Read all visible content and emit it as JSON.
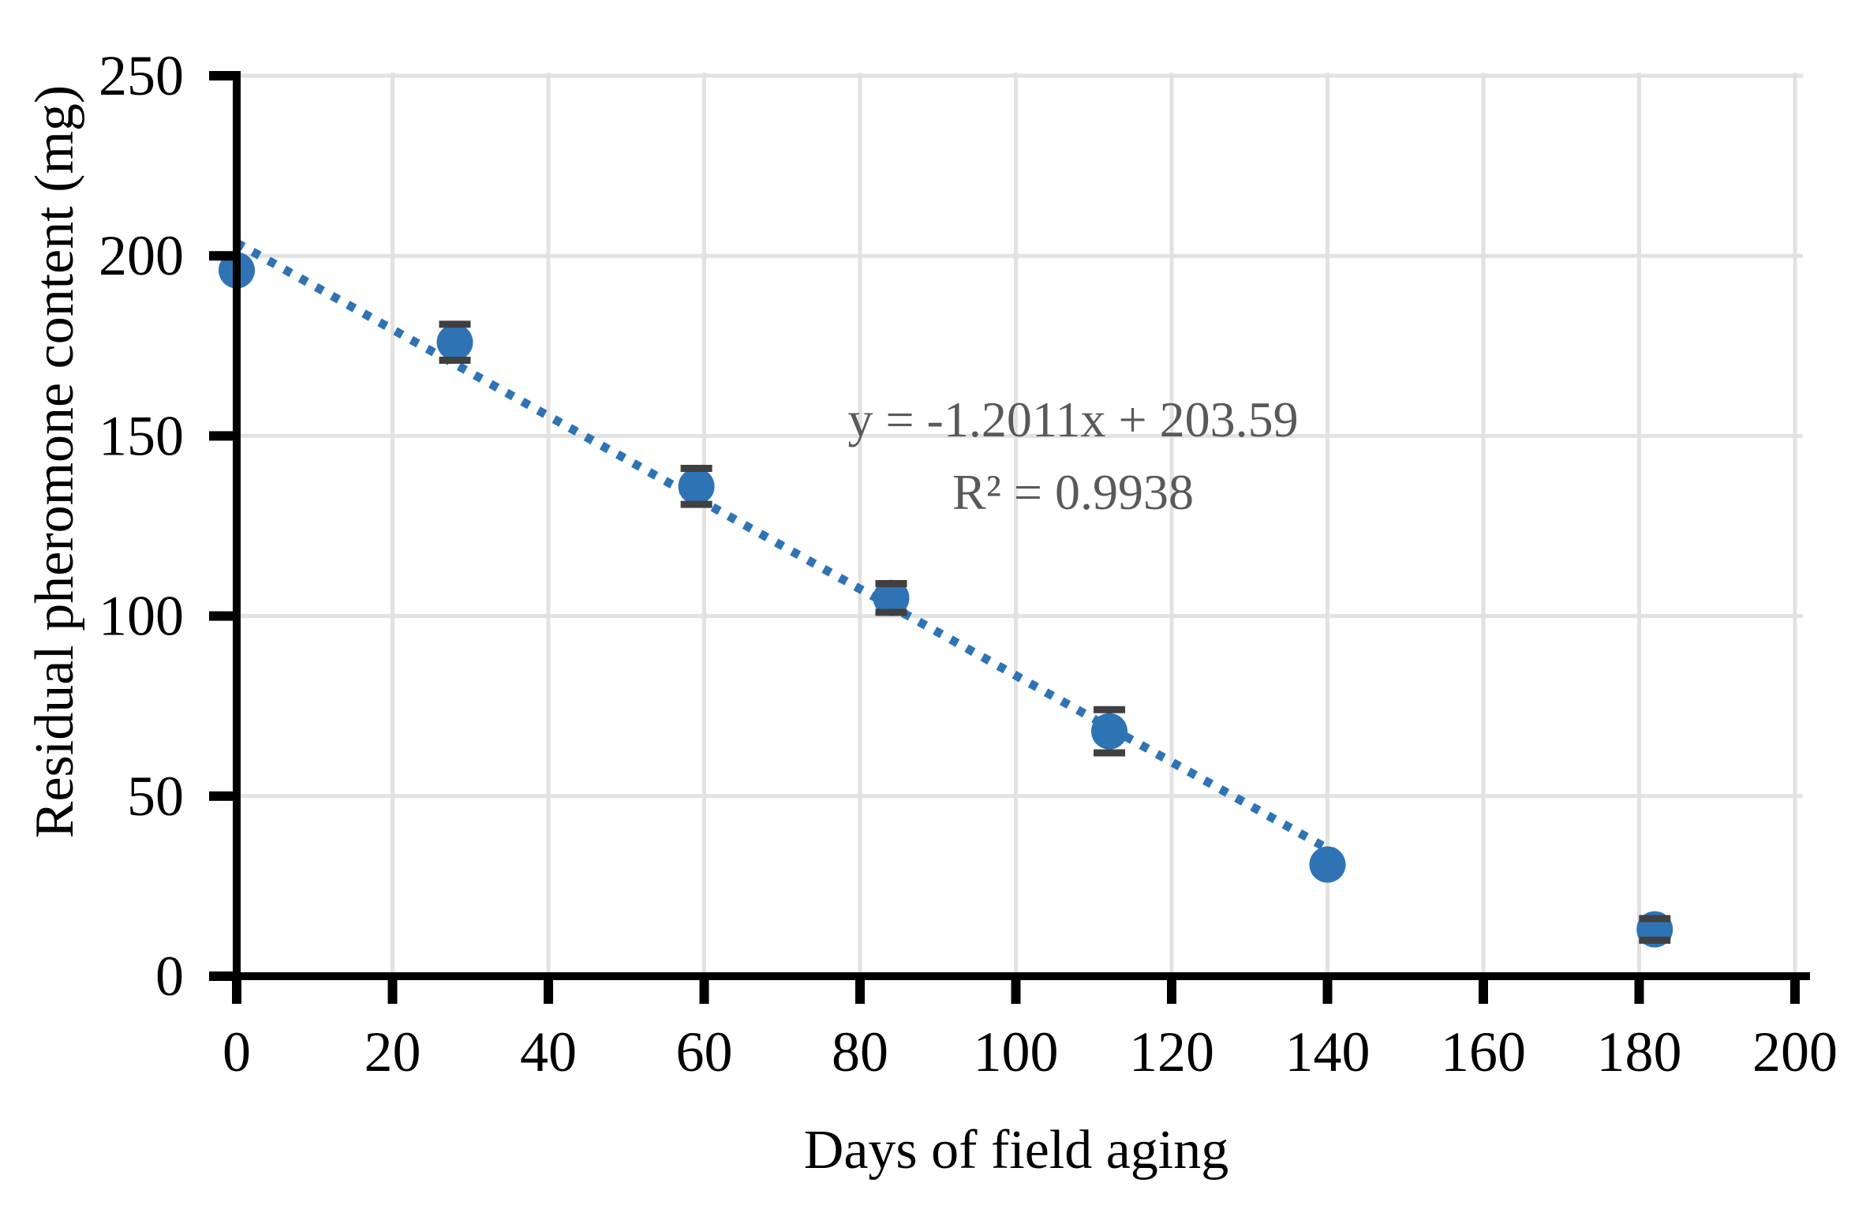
{
  "chart_data": {
    "type": "scatter",
    "title": "",
    "xlabel": "Days of field aging",
    "ylabel": "Residual pheromone content (mg)",
    "xlim": [
      0,
      200
    ],
    "ylim": [
      0,
      250
    ],
    "xticks": [
      0,
      20,
      40,
      60,
      80,
      100,
      120,
      140,
      160,
      180,
      200
    ],
    "yticks": [
      0,
      50,
      100,
      150,
      200,
      250
    ],
    "grid": true,
    "legend": false,
    "series": [
      {
        "name": "Residual pheromone content",
        "marker": "circle",
        "points": [
          {
            "x": 0,
            "y": 196,
            "yerr": 0
          },
          {
            "x": 28,
            "y": 176,
            "yerr": 5
          },
          {
            "x": 59,
            "y": 136,
            "yerr": 5
          },
          {
            "x": 84,
            "y": 105,
            "yerr": 4
          },
          {
            "x": 112,
            "y": 68,
            "yerr": 6
          },
          {
            "x": 140,
            "y": 31,
            "yerr": 0
          },
          {
            "x": 182,
            "y": 13,
            "yerr": 3
          }
        ]
      }
    ],
    "trendline": {
      "style": "dotted",
      "slope": -1.2011,
      "intercept": 203.59,
      "r_squared": 0.9938,
      "x_start": 0,
      "x_end": 141
    },
    "annotation": {
      "equation": "y = -1.2011x + 203.59",
      "r2": "R² = 0.9938"
    },
    "colors": {
      "marker": "#2E74B5",
      "trendline": "#2E74B5",
      "error_bar": "#404040",
      "gridline": "#E2E2E2",
      "axis": "#000000",
      "tick_label": "#000000",
      "equation_text": "#595959"
    }
  }
}
